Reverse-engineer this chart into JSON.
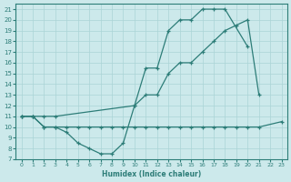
{
  "xlabel": "Humidex (Indice chaleur)",
  "color": "#2d7d78",
  "bg_color": "#cce9eb",
  "grid_color": "#aad4d6",
  "ylim": [
    7,
    21.5
  ],
  "xlim": [
    -0.5,
    23.5
  ],
  "yticks": [
    7,
    8,
    9,
    10,
    11,
    12,
    13,
    14,
    15,
    16,
    17,
    18,
    19,
    20,
    21
  ],
  "xticks": [
    0,
    1,
    2,
    3,
    4,
    5,
    6,
    7,
    8,
    9,
    10,
    11,
    12,
    13,
    14,
    15,
    16,
    17,
    18,
    19,
    20,
    21,
    22,
    23
  ],
  "line1_x": [
    0,
    1,
    2,
    3,
    4,
    5,
    6,
    7,
    8,
    9,
    10,
    11,
    12,
    13,
    14,
    15,
    16,
    17,
    18,
    20
  ],
  "line1_y": [
    11,
    11,
    10,
    10,
    9.5,
    8.5,
    8,
    7.5,
    7.5,
    8.5,
    12,
    15.5,
    15.5,
    19,
    20,
    20,
    21,
    21,
    21,
    17.5
  ],
  "line2_x": [
    0,
    1,
    2,
    3,
    10,
    11,
    12,
    13,
    14,
    15,
    16,
    17,
    18,
    19,
    20,
    21
  ],
  "line2_y": [
    11,
    11,
    11,
    11,
    12,
    13,
    13,
    15,
    16,
    16,
    17,
    18,
    19,
    19.5,
    20,
    13
  ],
  "line3_x": [
    0,
    1,
    2,
    3,
    4,
    5,
    6,
    7,
    8,
    9,
    10,
    11,
    12,
    13,
    14,
    15,
    16,
    17,
    18,
    19,
    20,
    21,
    23
  ],
  "line3_y": [
    11,
    11,
    10,
    10,
    10,
    10,
    10,
    10,
    10,
    10,
    10,
    10,
    10,
    10,
    10,
    10,
    10,
    10,
    10,
    10,
    10,
    10,
    10.5
  ]
}
